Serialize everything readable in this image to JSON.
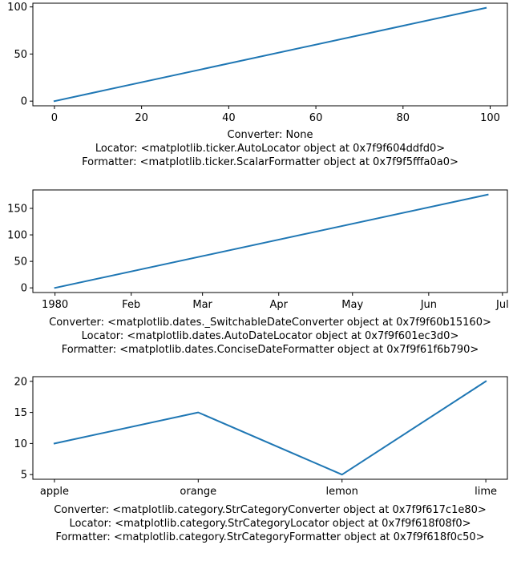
{
  "chart_data": [
    {
      "type": "line",
      "x_kind": "numeric",
      "xlim": [
        -4.95,
        103.95
      ],
      "ylim": [
        -4.95,
        103.95
      ],
      "xticks": [
        0,
        20,
        40,
        60,
        80,
        100
      ],
      "yticks": [
        0,
        50,
        100
      ],
      "series": [
        {
          "x": [
            0,
            99
          ],
          "y": [
            0,
            99
          ]
        }
      ],
      "caption": [
        "Converter: None",
        "Locator: <matplotlib.ticker.AutoLocator object at 0x7f9f604ddfd0>",
        "Formatter: <matplotlib.ticker.ScalarFormatter object at 0x7f9f5fffa0a0>"
      ]
    },
    {
      "type": "line",
      "x_kind": "date",
      "xlim": [
        "1979-12-23",
        "1980-07-03"
      ],
      "ylim": [
        -8.8,
        184.8
      ],
      "xticks": [
        {
          "date": "1980-01-01",
          "label": "1980"
        },
        {
          "date": "1980-02-01",
          "label": "Feb"
        },
        {
          "date": "1980-03-01",
          "label": "Mar"
        },
        {
          "date": "1980-04-01",
          "label": "Apr"
        },
        {
          "date": "1980-05-01",
          "label": "May"
        },
        {
          "date": "1980-06-01",
          "label": "Jun"
        },
        {
          "date": "1980-07-01",
          "label": "Jul"
        }
      ],
      "yticks": [
        0,
        50,
        100,
        150
      ],
      "series": [
        {
          "x": [
            "1980-01-01",
            "1980-06-25"
          ],
          "y": [
            0,
            176
          ]
        }
      ],
      "caption": [
        "Converter: <matplotlib.dates._SwitchableDateConverter object at 0x7f9f60b15160>",
        "Locator: <matplotlib.dates.AutoDateLocator object at 0x7f9f601ec3d0>",
        "Formatter: <matplotlib.dates.ConciseDateFormatter object at 0x7f9f61f6b790>"
      ]
    },
    {
      "type": "line",
      "x_kind": "category",
      "categories": [
        "apple",
        "orange",
        "lemon",
        "lime"
      ],
      "xlim": [
        -0.15,
        3.15
      ],
      "ylim": [
        4.25,
        20.75
      ],
      "yticks": [
        5,
        10,
        15,
        20
      ],
      "series": [
        {
          "values": [
            10,
            15,
            5,
            20
          ]
        }
      ],
      "caption": [
        "Converter: <matplotlib.category.StrCategoryConverter object at 0x7f9f617c1e80>",
        "Locator: <matplotlib.category.StrCategoryLocator object at 0x7f9f618f08f0>",
        "Formatter: <matplotlib.category.StrCategoryFormatter object at 0x7f9f618f0c50>"
      ]
    }
  ],
  "colors": {
    "series": "#1f77b4",
    "axes": "#000000",
    "background": "#ffffff"
  }
}
